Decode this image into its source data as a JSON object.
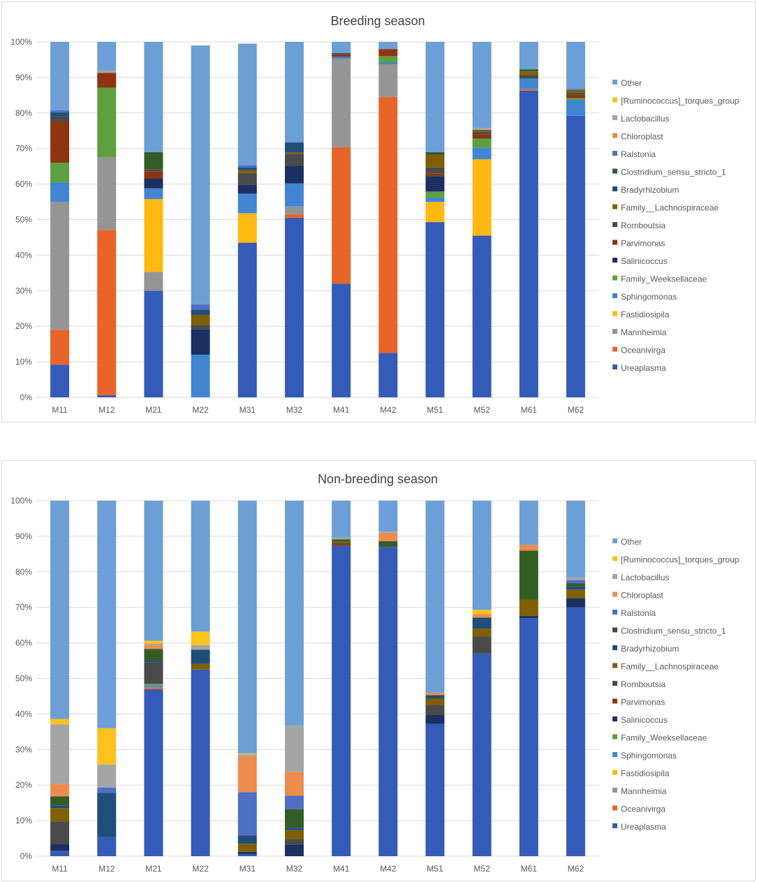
{
  "colors": {
    "Other": "#6c9fd6",
    "[Ruminococcus]_torques_group": "#fcc21d",
    "Lactobacillus": "#a5a5a5",
    "Chloroplast": "#ed8c4d",
    "Ralstonia": "#4d6fc6",
    "Clostridium_sensu_stricto_1": "#345d26",
    "Bradyrhizobium": "#1f4e79",
    "Family__Lachnospiraceae": "#7f5f00",
    "Romboutsia": "#4a4a4a",
    "Parvimonas": "#8c3510",
    "Salinicoccus": "#1c2f62",
    "Family_Weeksellaceae": "#5da03f",
    "Sphingomonas": "#4286d3",
    "Fastidiosipila": "#fdb812",
    "Mannheimia": "#959595",
    "Oceanivirga": "#e8652a",
    "Ureaplasma": "#355bb8"
  },
  "chart_data": [
    {
      "type": "bar",
      "stacked": true,
      "title": "Breeding season",
      "xlabel": "",
      "ylabel": "",
      "ylim": [
        0,
        100
      ],
      "yticks": [
        "0%",
        "10%",
        "20%",
        "30%",
        "40%",
        "50%",
        "60%",
        "70%",
        "80%",
        "90%",
        "100%"
      ],
      "categories": [
        "M11",
        "M12",
        "M21",
        "M22",
        "M31",
        "M32",
        "M41",
        "M42",
        "M51",
        "M52",
        "M61",
        "M62"
      ],
      "legend": [
        "Other",
        "[Ruminococcus]_torques_group",
        "Lactobacillus",
        "Chloroplast",
        "Ralstonia",
        "Clostridium_sensu_stricto_1",
        "Bradyrhizobium",
        "Family__Lachnospiraceae",
        "Romboutsia",
        "Parvimonas",
        "Salinicoccus",
        "Family_Weeksellaceae",
        "Sphingomonas",
        "Fastidiosipila",
        "Mannheimia",
        "Oceanivirga",
        "Ureaplasma"
      ],
      "series": [
        {
          "name": "Ureaplasma",
          "values": [
            9.2,
            0.6,
            30.0,
            0,
            43.5,
            50.5,
            32.0,
            12.5,
            49.3,
            45.5,
            86.3,
            79.2
          ]
        },
        {
          "name": "Oceanivirga",
          "values": [
            9.8,
            46.5,
            0,
            0,
            0,
            1.0,
            38.4,
            72.0,
            0,
            0,
            0.4,
            0
          ]
        },
        {
          "name": "Mannheimia",
          "values": [
            36.0,
            20.5,
            5.3,
            0,
            0,
            2.2,
            24.8,
            9.2,
            0,
            0,
            0,
            0
          ]
        },
        {
          "name": "Fastidiosipila",
          "values": [
            0,
            0,
            20.5,
            0,
            8.3,
            0,
            0,
            0,
            5.7,
            21.5,
            0,
            0
          ]
        },
        {
          "name": "Sphingomonas",
          "values": [
            5.5,
            0,
            3.0,
            12.0,
            5.5,
            6.5,
            0.6,
            0.5,
            1.2,
            3.3,
            3.0,
            4.5
          ]
        },
        {
          "name": "Family_Weeksellaceae",
          "values": [
            5.5,
            19.5,
            0,
            0,
            0,
            0,
            0,
            1.8,
            1.7,
            2.5,
            0,
            0.5
          ]
        },
        {
          "name": "Salinicoccus",
          "values": [
            0,
            0,
            2.8,
            7.2,
            2.5,
            5.0,
            0,
            0,
            4.3,
            0,
            0,
            0
          ]
        },
        {
          "name": "Parvimonas",
          "values": [
            11.5,
            4.2,
            2.0,
            0,
            0,
            0,
            0.7,
            2.0,
            0.7,
            1.2,
            0,
            1.0
          ]
        },
        {
          "name": "Romboutsia",
          "values": [
            1.5,
            0,
            0.6,
            1.2,
            3.3,
            3.3,
            0.4,
            0,
            1.8,
            0.8,
            1.0,
            0.5
          ]
        },
        {
          "name": "Family__Lachnospiraceae",
          "values": [
            0,
            0,
            0,
            2.8,
            0.8,
            0.4,
            0,
            0,
            3.5,
            0.5,
            1.0,
            0.8
          ]
        },
        {
          "name": "Bradyrhizobium",
          "values": [
            1.2,
            0,
            0,
            1.5,
            0.8,
            2.8,
            0,
            0,
            0,
            0,
            0,
            0
          ]
        },
        {
          "name": "Clostridium_sensu_stricto_1",
          "values": [
            0,
            0,
            4.8,
            0,
            0,
            0,
            0,
            0,
            0.8,
            0,
            0.6,
            0
          ]
        },
        {
          "name": "Ralstonia",
          "values": [
            0.6,
            0,
            0,
            1.5,
            0.6,
            0,
            0,
            0,
            0,
            0,
            0,
            0.3
          ]
        },
        {
          "name": "Chloroplast",
          "values": [
            0,
            0,
            0,
            0,
            0,
            0,
            0,
            0,
            0,
            0,
            0,
            0
          ]
        },
        {
          "name": "Lactobacillus",
          "values": [
            0,
            0.6,
            0,
            0,
            0,
            0,
            0,
            0,
            0,
            0.5,
            0,
            0
          ]
        },
        {
          "name": "[Ruminococcus]_torques_group",
          "values": [
            0,
            0,
            0,
            0,
            0,
            0,
            0,
            0,
            0,
            0,
            0,
            0
          ]
        },
        {
          "name": "Other",
          "values": [
            19.2,
            8.1,
            31.0,
            72.8,
            34.2,
            28.3,
            3.1,
            2.0,
            31.0,
            24.2,
            7.7,
            13.2
          ]
        }
      ]
    },
    {
      "type": "bar",
      "stacked": true,
      "title": "Non-breeding season",
      "xlabel": "",
      "ylabel": "",
      "ylim": [
        0,
        100
      ],
      "yticks": [
        "0%",
        "10%",
        "20%",
        "30%",
        "40%",
        "50%",
        "60%",
        "70%",
        "80%",
        "90%",
        "100%"
      ],
      "categories": [
        "M11",
        "M12",
        "M21",
        "M22",
        "M31",
        "M32",
        "M41",
        "M42",
        "M51",
        "M52",
        "M61",
        "M62"
      ],
      "legend": [
        "Other",
        "[Ruminococcus]_torques_group",
        "Lactobacillus",
        "Chloroplast",
        "Ralstonia",
        "Clostridium_sensu_stricto_1",
        "Bradyrhizobium",
        "Family__Lachnospiraceae",
        "Romboutsia",
        "Parvimonas",
        "Salinicoccus",
        "Family_Weeksellaceae",
        "Sphingomonas",
        "Fastidiosipila",
        "Mannheimia",
        "Oceanivirga",
        "Ureaplasma"
      ],
      "series": [
        {
          "name": "Ureaplasma",
          "values": [
            1.5,
            5.5,
            47.0,
            52.5,
            0.6,
            0,
            87.3,
            87.0,
            37.2,
            57.0,
            67.0,
            70.0
          ]
        },
        {
          "name": "Oceanivirga",
          "values": [
            0,
            0,
            0.5,
            0,
            0,
            0,
            0,
            0,
            0,
            0,
            0,
            0
          ]
        },
        {
          "name": "Mannheimia",
          "values": [
            0,
            0,
            0,
            0,
            0,
            0,
            0,
            0,
            0,
            0,
            0,
            0
          ]
        },
        {
          "name": "Fastidiosipila",
          "values": [
            0,
            0,
            0,
            0,
            0,
            0,
            0,
            0,
            0,
            0,
            0,
            0
          ]
        },
        {
          "name": "Sphingomonas",
          "values": [
            0,
            0,
            0.5,
            0,
            0,
            0,
            0,
            0,
            0,
            0,
            0,
            0
          ]
        },
        {
          "name": "Family_Weeksellaceae",
          "values": [
            0,
            0,
            0.5,
            0,
            0,
            0,
            0,
            0,
            0,
            0,
            0,
            0
          ]
        },
        {
          "name": "Salinicoccus",
          "values": [
            2.0,
            0,
            0,
            0,
            0.6,
            3.3,
            0,
            0,
            2.6,
            0,
            0.6,
            2.5
          ]
        },
        {
          "name": "Parvimonas",
          "values": [
            0,
            0,
            0,
            0,
            0,
            0,
            0.4,
            0,
            0,
            0,
            0,
            0
          ]
        },
        {
          "name": "Romboutsia",
          "values": [
            6.3,
            0,
            6.0,
            0,
            0,
            1.5,
            0.4,
            0,
            2.8,
            4.8,
            0,
            0
          ]
        },
        {
          "name": "Family__Lachnospiraceae",
          "values": [
            3.7,
            0,
            0,
            1.6,
            2.3,
            2.5,
            0.5,
            0,
            1.8,
            2.2,
            4.6,
            2.5
          ]
        },
        {
          "name": "Bradyrhizobium",
          "values": [
            0.8,
            12.3,
            0.5,
            4.0,
            2.3,
            0.7,
            0,
            0,
            0.9,
            3.1,
            0,
            1.0
          ]
        },
        {
          "name": "Clostridium_sensu_stricto_1",
          "values": [
            2.5,
            0,
            3.3,
            0,
            0,
            5.2,
            0.5,
            1.6,
            0,
            0,
            13.8,
            0.8
          ]
        },
        {
          "name": "Ralstonia",
          "values": [
            0,
            1.5,
            0,
            0,
            12.2,
            3.8,
            0,
            0,
            0,
            0,
            0,
            0.8
          ]
        },
        {
          "name": "Chloroplast",
          "values": [
            3.5,
            0,
            1.0,
            0,
            10.0,
            6.7,
            0,
            2.4,
            0.7,
            1.0,
            1.6,
            0
          ]
        },
        {
          "name": "Lactobacillus",
          "values": [
            16.8,
            6.5,
            0.5,
            1.3,
            0.6,
            13.0,
            0.6,
            0.3,
            0,
            0,
            0,
            0.8
          ]
        },
        {
          "name": "[Ruminococcus]_torques_group",
          "values": [
            1.5,
            10.2,
            0.8,
            3.8,
            0.3,
            0,
            0,
            0,
            0,
            1.2,
            0,
            0
          ]
        },
        {
          "name": "Other",
          "values": [
            61.4,
            64.0,
            39.4,
            36.8,
            71.1,
            63.3,
            10.3,
            8.7,
            54.0,
            30.7,
            12.4,
            21.6
          ]
        }
      ]
    }
  ]
}
